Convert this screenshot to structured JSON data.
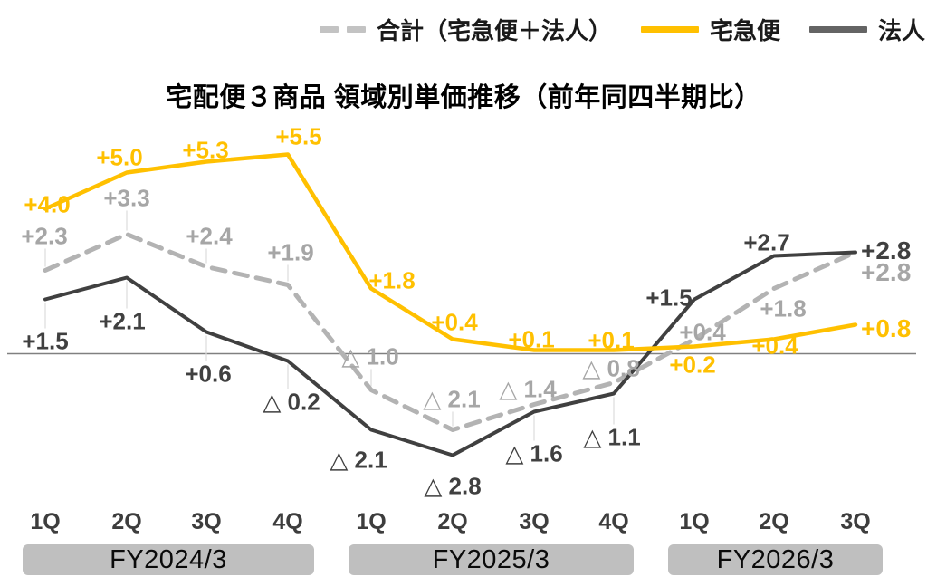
{
  "title": "宅配便３商品 領域別単価推移（前年同四半期比）",
  "legend": {
    "position": "top-right",
    "items": [
      {
        "label": "合計（宅急便＋法人）",
        "style": "dashed",
        "color": "#bfbfbf"
      },
      {
        "label": "宅急便",
        "style": "solid",
        "color": "#ffc000"
      },
      {
        "label": "法人",
        "style": "solid",
        "color": "#646464"
      }
    ]
  },
  "chart_data": {
    "type": "line",
    "title": "宅配便３商品 領域別単価推移（前年同四半期比）",
    "categories": [
      "1Q",
      "2Q",
      "3Q",
      "4Q",
      "1Q",
      "2Q",
      "3Q",
      "4Q",
      "1Q",
      "2Q",
      "3Q"
    ],
    "fiscal_years": [
      {
        "label": "FY2024/3",
        "start": 0,
        "end": 3
      },
      {
        "label": "FY2025/3",
        "start": 4,
        "end": 7
      },
      {
        "label": "FY2026/3",
        "start": 8,
        "end": 10
      }
    ],
    "grid": false,
    "y_axis_visible": false,
    "ylim": [
      -3.5,
      6.5
    ],
    "baseline": 0,
    "negative_marker": "△",
    "series": [
      {
        "name": "合計（宅急便＋法人）",
        "line_color": "#b3b3b3",
        "label_color": "#a6a6a6",
        "dashed": true,
        "values": [
          2.3,
          3.3,
          2.4,
          1.9,
          -1.0,
          -2.1,
          -1.4,
          -0.8,
          0.4,
          1.8,
          2.8
        ],
        "labels": [
          "+2.3",
          "+3.3",
          "+2.4",
          "+1.9",
          "△ 1.0",
          "△ 2.1",
          "△ 1.4",
          "△ 0.8",
          "+0.4",
          "+1.8",
          "+2.8"
        ]
      },
      {
        "name": "宅急便",
        "line_color": "#ffc000",
        "label_color": "#ffc000",
        "dashed": false,
        "values": [
          4.0,
          5.0,
          5.3,
          5.5,
          1.8,
          0.4,
          0.1,
          0.1,
          0.2,
          0.4,
          0.8
        ],
        "labels": [
          "+4.0",
          "+5.0",
          "+5.3",
          "+5.5",
          "+1.8",
          "+0.4",
          "+0.1",
          "+0.1",
          "+0.2",
          "+0.4",
          "+0.8"
        ]
      },
      {
        "name": "法人",
        "line_color": "#404040",
        "label_color": "#404040",
        "dashed": false,
        "values": [
          1.5,
          2.1,
          0.6,
          -0.2,
          -2.1,
          -2.8,
          -1.6,
          -1.1,
          1.5,
          2.7,
          2.8
        ],
        "labels": [
          "+1.5",
          "+2.1",
          "+0.6",
          "△ 0.2",
          "△ 2.1",
          "△ 2.8",
          "△ 1.6",
          "△ 1.1",
          "+1.5",
          "+2.7",
          "+2.8"
        ]
      }
    ]
  }
}
